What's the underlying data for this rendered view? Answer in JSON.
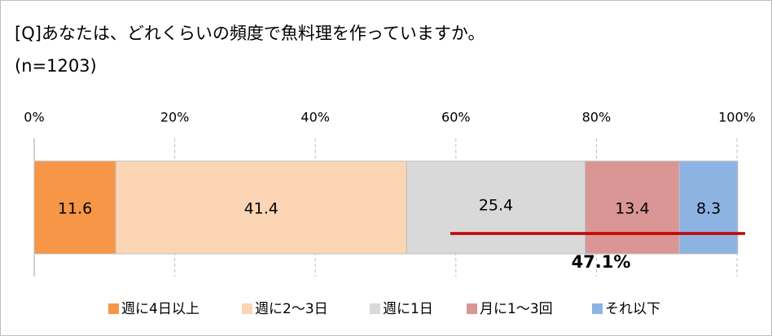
{
  "chart_data": {
    "type": "stacked-bar",
    "orientation": "horizontal",
    "title": "[Q]あなたは、どれくらいの頻度で魚料理を作っていますか。",
    "subtitle": "(n=1203)",
    "categories": [
      null
    ],
    "series": [
      {
        "name": "週に4日以上",
        "color": "#f79646",
        "values": [
          11.6
        ]
      },
      {
        "name": "週に2～3日",
        "color": "#fcd5b5",
        "values": [
          41.4
        ]
      },
      {
        "name": "週に1日",
        "color": "#d9d9d9",
        "values": [
          25.4
        ]
      },
      {
        "name": "月に1～3回",
        "color": "#d99694",
        "values": [
          13.4
        ]
      },
      {
        "name": "それ以下",
        "color": "#8db3e2",
        "values": [
          8.3
        ]
      }
    ],
    "xlim": [
      0,
      100
    ],
    "xticks": [
      {
        "value": 0,
        "label": "0%"
      },
      {
        "value": 20,
        "label": "20%"
      },
      {
        "value": 40,
        "label": "40%"
      },
      {
        "value": 60,
        "label": "60%"
      },
      {
        "value": 80,
        "label": "80%"
      },
      {
        "value": 100,
        "label": "100%"
      }
    ],
    "grid": true,
    "annotation": "47.1%",
    "annotation_color": "#c00000"
  }
}
